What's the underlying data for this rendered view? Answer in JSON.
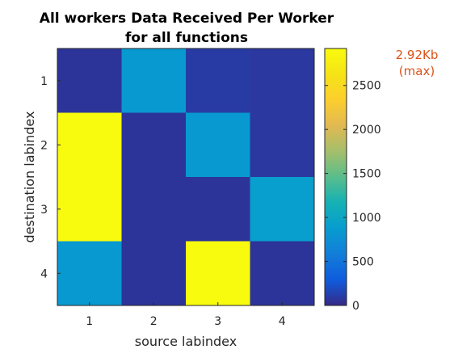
{
  "chart_data": {
    "type": "heatmap",
    "title_lines": [
      "All workers Data Received Per Worker",
      "for all functions"
    ],
    "xlabel": "source labindex",
    "ylabel": "destination labindex",
    "x_ticks": [
      "1",
      "2",
      "3",
      "4"
    ],
    "y_ticks": [
      "1",
      "2",
      "3",
      "4"
    ],
    "values": [
      [
        60,
        850,
        100,
        80
      ],
      [
        2920,
        60,
        850,
        80
      ],
      [
        2920,
        60,
        60,
        900
      ],
      [
        850,
        60,
        2920,
        60
      ]
    ],
    "colorbar": {
      "range": [
        0,
        2920
      ],
      "ticks": [
        0,
        500,
        1000,
        1500,
        2000,
        2500
      ],
      "tick_labels": [
        "0",
        "500",
        "1000",
        "1500",
        "2000",
        "2500"
      ],
      "max_label_lines": [
        "2.92Kb",
        "(max)"
      ],
      "colormap": "parula"
    },
    "colors": {
      "max_label": "#d95319",
      "frame": "#262626"
    }
  }
}
